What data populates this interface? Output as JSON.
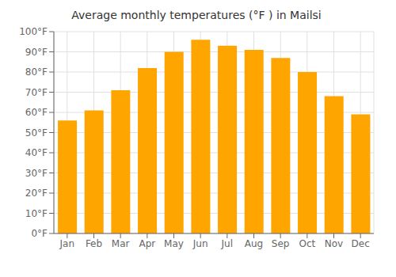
{
  "chart_data": {
    "type": "bar",
    "title": "Average monthly temperatures (°F ) in Mailsi",
    "categories": [
      "Jan",
      "Feb",
      "Mar",
      "Apr",
      "May",
      "Jun",
      "Jul",
      "Aug",
      "Sep",
      "Oct",
      "Nov",
      "Dec"
    ],
    "values": [
      56,
      61,
      71,
      82,
      90,
      96,
      93,
      91,
      87,
      80,
      68,
      59
    ],
    "color": "#FFA500",
    "ylim": [
      0,
      100
    ],
    "yticks": [
      {
        "value": 0,
        "label": "0°F"
      },
      {
        "value": 10,
        "label": "10°F"
      },
      {
        "value": 20,
        "label": "20°F"
      },
      {
        "value": 30,
        "label": "30°F"
      },
      {
        "value": 40,
        "label": "40°F"
      },
      {
        "value": 50,
        "label": "50°F"
      },
      {
        "value": 60,
        "label": "60°F"
      },
      {
        "value": 70,
        "label": "70°F"
      },
      {
        "value": 80,
        "label": "80°F"
      },
      {
        "value": 90,
        "label": "90°F"
      },
      {
        "value": 100,
        "label": "100°F"
      }
    ],
    "grid": true
  }
}
